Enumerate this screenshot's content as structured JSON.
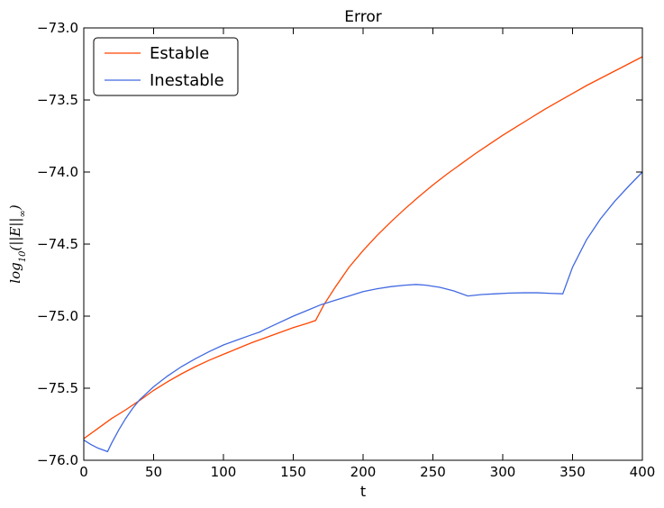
{
  "chart_data": {
    "type": "line",
    "title": "Error",
    "xlabel": "t",
    "ylabel": "log10(||E||∞)",
    "ylabel_parts": {
      "base": "log",
      "sub": "10",
      "middle": "(||E||",
      "sub2": "∞",
      "end": ")"
    },
    "xlim": [
      0,
      400
    ],
    "ylim": [
      -76.0,
      -73.0
    ],
    "x_ticks": [
      0,
      50,
      100,
      150,
      200,
      250,
      300,
      350,
      400
    ],
    "x_tick_labels": [
      "0",
      "50",
      "100",
      "150",
      "200",
      "250",
      "300",
      "350",
      "400"
    ],
    "y_ticks": [
      -76.0,
      -75.5,
      -75.0,
      -74.5,
      -74.0,
      -73.5,
      -73.0
    ],
    "y_tick_labels": [
      "−76.0",
      "−75.5",
      "−75.0",
      "−74.5",
      "−74.0",
      "−73.5",
      "−73.0"
    ],
    "grid": false,
    "legend_position": "top-left",
    "series": [
      {
        "name": "Estable",
        "color": "#ff4500",
        "points": [
          [
            0,
            -75.85
          ],
          [
            10,
            -75.78
          ],
          [
            20,
            -75.71
          ],
          [
            30,
            -75.65
          ],
          [
            40,
            -75.585
          ],
          [
            50,
            -75.515
          ],
          [
            60,
            -75.455
          ],
          [
            70,
            -75.4
          ],
          [
            80,
            -75.35
          ],
          [
            90,
            -75.305
          ],
          [
            100,
            -75.265
          ],
          [
            110,
            -75.225
          ],
          [
            120,
            -75.185
          ],
          [
            130,
            -75.15
          ],
          [
            140,
            -75.115
          ],
          [
            150,
            -75.08
          ],
          [
            160,
            -75.05
          ],
          [
            166,
            -75.03
          ],
          [
            172,
            -74.92
          ],
          [
            180,
            -74.8
          ],
          [
            190,
            -74.66
          ],
          [
            200,
            -74.545
          ],
          [
            210,
            -74.44
          ],
          [
            220,
            -74.345
          ],
          [
            230,
            -74.255
          ],
          [
            240,
            -74.17
          ],
          [
            250,
            -74.09
          ],
          [
            260,
            -74.015
          ],
          [
            270,
            -73.945
          ],
          [
            280,
            -73.875
          ],
          [
            290,
            -73.81
          ],
          [
            300,
            -73.745
          ],
          [
            310,
            -73.685
          ],
          [
            320,
            -73.625
          ],
          [
            330,
            -73.565
          ],
          [
            340,
            -73.51
          ],
          [
            350,
            -73.455
          ],
          [
            360,
            -73.4
          ],
          [
            370,
            -73.35
          ],
          [
            380,
            -73.3
          ],
          [
            390,
            -73.25
          ],
          [
            400,
            -73.2
          ]
        ]
      },
      {
        "name": "Inestable",
        "color": "#4169e1",
        "points": [
          [
            0,
            -75.86
          ],
          [
            5,
            -75.89
          ],
          [
            10,
            -75.915
          ],
          [
            17,
            -75.94
          ],
          [
            20,
            -75.88
          ],
          [
            25,
            -75.79
          ],
          [
            30,
            -75.71
          ],
          [
            35,
            -75.64
          ],
          [
            40,
            -75.58
          ],
          [
            50,
            -75.49
          ],
          [
            60,
            -75.415
          ],
          [
            70,
            -75.35
          ],
          [
            80,
            -75.295
          ],
          [
            90,
            -75.245
          ],
          [
            100,
            -75.2
          ],
          [
            110,
            -75.165
          ],
          [
            120,
            -75.13
          ],
          [
            126,
            -75.11
          ],
          [
            130,
            -75.09
          ],
          [
            140,
            -75.045
          ],
          [
            150,
            -75.0
          ],
          [
            160,
            -74.96
          ],
          [
            170,
            -74.92
          ],
          [
            180,
            -74.89
          ],
          [
            190,
            -74.86
          ],
          [
            200,
            -74.83
          ],
          [
            210,
            -74.81
          ],
          [
            220,
            -74.795
          ],
          [
            230,
            -74.785
          ],
          [
            238,
            -74.78
          ],
          [
            245,
            -74.785
          ],
          [
            255,
            -74.8
          ],
          [
            265,
            -74.825
          ],
          [
            275,
            -74.86
          ],
          [
            285,
            -74.85
          ],
          [
            295,
            -74.845
          ],
          [
            305,
            -74.84
          ],
          [
            315,
            -74.838
          ],
          [
            325,
            -74.838
          ],
          [
            335,
            -74.842
          ],
          [
            343,
            -74.845
          ],
          [
            350,
            -74.66
          ],
          [
            360,
            -74.47
          ],
          [
            370,
            -74.325
          ],
          [
            380,
            -74.205
          ],
          [
            390,
            -74.1
          ],
          [
            400,
            -74.0
          ]
        ]
      }
    ]
  }
}
